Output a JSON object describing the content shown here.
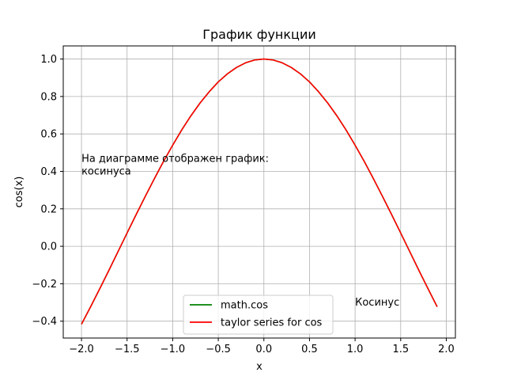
{
  "chart_data": {
    "type": "line",
    "title": "График функции",
    "xlabel": "x",
    "ylabel": "cos(x)",
    "xlim": [
      -2.2,
      2.1
    ],
    "ylim": [
      -0.49,
      1.07
    ],
    "xticks": [
      -2.0,
      -1.5,
      -1.0,
      -0.5,
      0.0,
      0.5,
      1.0,
      1.5,
      2.0
    ],
    "xtick_labels": [
      "−2.0",
      "−1.5",
      "−1.0",
      "−0.5",
      "0.0",
      "0.5",
      "1.0",
      "1.5",
      "2.0"
    ],
    "yticks": [
      -0.4,
      -0.2,
      0.0,
      0.2,
      0.4,
      0.6,
      0.8,
      1.0
    ],
    "ytick_labels": [
      "−0.4",
      "−0.2",
      "0.0",
      "0.2",
      "0.4",
      "0.6",
      "0.8",
      "1.0"
    ],
    "grid": true,
    "legend_position": "lower-center",
    "x": [
      -2.0,
      -1.9,
      -1.8,
      -1.7,
      -1.6,
      -1.5,
      -1.4,
      -1.3,
      -1.2,
      -1.1,
      -1.0,
      -0.9,
      -0.8,
      -0.7,
      -0.6,
      -0.5,
      -0.4,
      -0.3,
      -0.2,
      -0.1,
      0.0,
      0.1,
      0.2,
      0.3,
      0.4,
      0.5,
      0.6,
      0.7,
      0.8,
      0.9,
      1.0,
      1.1,
      1.2,
      1.3,
      1.4,
      1.5,
      1.6,
      1.7,
      1.8,
      1.9
    ],
    "series": [
      {
        "name": "math.cos",
        "color": "#008000",
        "values": [
          -0.416,
          -0.323,
          -0.227,
          -0.129,
          -0.029,
          0.071,
          0.17,
          0.267,
          0.362,
          0.454,
          0.54,
          0.622,
          0.697,
          0.765,
          0.825,
          0.878,
          0.921,
          0.955,
          0.98,
          0.995,
          1.0,
          0.995,
          0.98,
          0.955,
          0.921,
          0.878,
          0.825,
          0.765,
          0.697,
          0.622,
          0.54,
          0.454,
          0.362,
          0.267,
          0.17,
          0.071,
          -0.029,
          -0.129,
          -0.227,
          -0.323
        ]
      },
      {
        "name": "taylor series for cos",
        "color": "#ff0000",
        "values": [
          -0.416,
          -0.323,
          -0.227,
          -0.129,
          -0.029,
          0.071,
          0.17,
          0.267,
          0.362,
          0.454,
          0.54,
          0.622,
          0.697,
          0.765,
          0.825,
          0.878,
          0.921,
          0.955,
          0.98,
          0.995,
          1.0,
          0.995,
          0.98,
          0.955,
          0.921,
          0.878,
          0.825,
          0.765,
          0.697,
          0.622,
          0.54,
          0.454,
          0.362,
          0.267,
          0.17,
          0.071,
          -0.029,
          -0.129,
          -0.227,
          -0.323
        ]
      }
    ],
    "annotations": [
      {
        "text_lines": [
          "На диаграмме отображен график:",
          "косинуса"
        ],
        "x": -2.0,
        "y": 0.4
      },
      {
        "text_lines": [
          "Косинус"
        ],
        "x": 1.0,
        "y": -0.3
      }
    ]
  }
}
